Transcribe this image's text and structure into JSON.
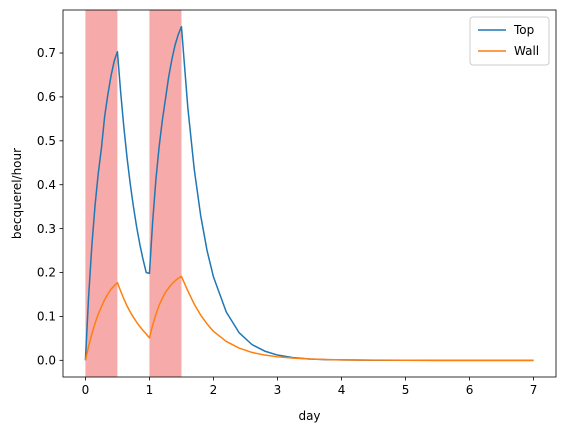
{
  "chart_data": {
    "type": "line",
    "title": "",
    "xlabel": "day",
    "ylabel": "becquerel/hour",
    "xlim": [
      -0.35,
      7.35
    ],
    "ylim": [
      -0.038,
      0.798
    ],
    "xticks": [
      0,
      1,
      2,
      3,
      4,
      5,
      6,
      7
    ],
    "yticks": [
      0.0,
      0.1,
      0.2,
      0.3,
      0.4,
      0.5,
      0.6,
      0.7
    ],
    "ytick_decimals": 1,
    "grid": false,
    "legend_position": "top-right",
    "shaded_regions": [
      {
        "x0": 0.0,
        "x1": 0.5,
        "color": "#f7aaaa"
      },
      {
        "x0": 1.0,
        "x1": 1.5,
        "color": "#f7aaaa"
      }
    ],
    "series": [
      {
        "name": "Top",
        "color": "#1f77b4",
        "x": [
          0.0,
          0.05,
          0.1,
          0.15,
          0.2,
          0.25,
          0.3,
          0.35,
          0.4,
          0.45,
          0.5,
          0.55,
          0.6,
          0.65,
          0.7,
          0.75,
          0.8,
          0.85,
          0.9,
          0.95,
          1.0,
          1.05,
          1.1,
          1.15,
          1.2,
          1.25,
          1.3,
          1.35,
          1.4,
          1.45,
          1.5,
          1.6,
          1.7,
          1.8,
          1.9,
          2.0,
          2.2,
          2.4,
          2.6,
          2.8,
          3.0,
          3.25,
          3.5,
          3.75,
          4.0,
          4.5,
          5.0,
          5.5,
          6.0,
          6.5,
          7.0
        ],
        "y": [
          0.0,
          0.145,
          0.26,
          0.352,
          0.425,
          0.483,
          0.555,
          0.605,
          0.648,
          0.682,
          0.703,
          0.612,
          0.532,
          0.462,
          0.402,
          0.35,
          0.304,
          0.264,
          0.23,
          0.2,
          0.198,
          0.315,
          0.41,
          0.485,
          0.545,
          0.595,
          0.645,
          0.685,
          0.718,
          0.742,
          0.76,
          0.575,
          0.435,
          0.33,
          0.25,
          0.19,
          0.11,
          0.063,
          0.036,
          0.021,
          0.012,
          0.006,
          0.003,
          0.0015,
          0.001,
          0.0003,
          0.0001,
          0.0,
          0.0,
          0.0,
          0.0
        ]
      },
      {
        "name": "Wall",
        "color": "#ff7f0e",
        "x": [
          0.0,
          0.05,
          0.1,
          0.15,
          0.2,
          0.25,
          0.3,
          0.35,
          0.4,
          0.45,
          0.5,
          0.55,
          0.6,
          0.65,
          0.7,
          0.75,
          0.8,
          0.85,
          0.9,
          0.95,
          1.0,
          1.05,
          1.1,
          1.15,
          1.2,
          1.25,
          1.3,
          1.35,
          1.4,
          1.45,
          1.5,
          1.6,
          1.7,
          1.8,
          1.9,
          2.0,
          2.2,
          2.4,
          2.6,
          2.8,
          3.0,
          3.25,
          3.5,
          3.75,
          4.0,
          4.5,
          5.0,
          5.5,
          6.0,
          6.5,
          7.0
        ],
        "y": [
          0.0,
          0.032,
          0.06,
          0.084,
          0.105,
          0.122,
          0.138,
          0.151,
          0.162,
          0.17,
          0.177,
          0.158,
          0.14,
          0.124,
          0.11,
          0.098,
          0.087,
          0.077,
          0.068,
          0.06,
          0.051,
          0.08,
          0.104,
          0.125,
          0.141,
          0.155,
          0.165,
          0.174,
          0.181,
          0.187,
          0.191,
          0.158,
          0.128,
          0.103,
          0.083,
          0.066,
          0.043,
          0.028,
          0.018,
          0.012,
          0.008,
          0.005,
          0.003,
          0.002,
          0.001,
          0.0004,
          0.0001,
          0.0,
          0.0,
          0.0,
          0.0
        ]
      }
    ]
  }
}
